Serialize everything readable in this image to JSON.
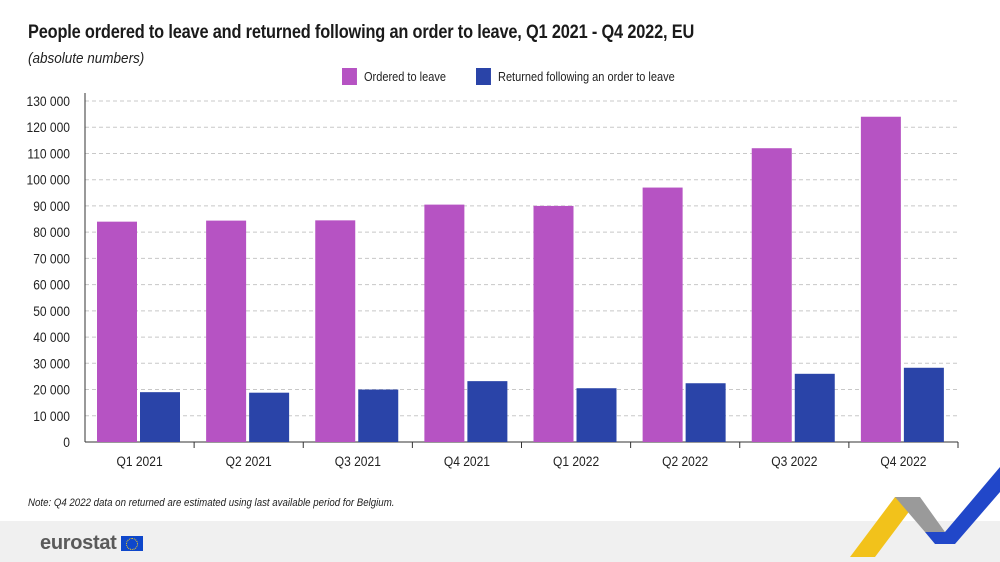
{
  "title": "People ordered to leave and returned following an order to leave, Q1 2021 - Q4 2022, EU",
  "subtitle": "(absolute numbers)",
  "note": "Note: Q4 2022 data on returned are estimated using last available period for Belgium.",
  "logo": "eurostat",
  "colors": {
    "ordered": "#b653c3",
    "returned": "#2a44a8",
    "grid": "#c8c8c8",
    "axis": "#333333"
  },
  "chart_data": {
    "type": "bar",
    "categories": [
      "Q1 2021",
      "Q2 2021",
      "Q3 2021",
      "Q4 2021",
      "Q1 2022",
      "Q2 2022",
      "Q3 2022",
      "Q4 2022"
    ],
    "series": [
      {
        "name": "Ordered to leave",
        "values": [
          84000,
          84400,
          84500,
          90500,
          90000,
          97000,
          112000,
          124000
        ]
      },
      {
        "name": "Returned following an order to leave",
        "values": [
          19000,
          18800,
          20000,
          23200,
          20500,
          22400,
          26000,
          28300
        ]
      }
    ],
    "ylim": [
      0,
      130000
    ],
    "yticks": [
      "0",
      "10 000",
      "20 000",
      "30 000",
      "40 000",
      "50 000",
      "60 000",
      "70 000",
      "80 000",
      "90 000",
      "100 000",
      "110 000",
      "120 000",
      "130 000"
    ],
    "ytick_values": [
      0,
      10000,
      20000,
      30000,
      40000,
      50000,
      60000,
      70000,
      80000,
      90000,
      100000,
      110000,
      120000,
      130000
    ],
    "grid": true,
    "legend": "top-center"
  }
}
